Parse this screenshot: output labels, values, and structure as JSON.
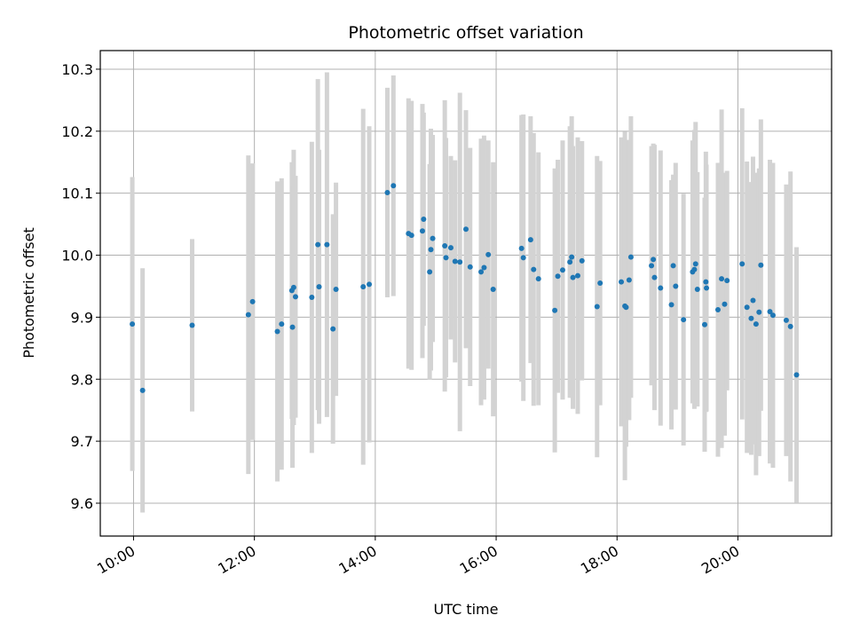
{
  "chart_data": {
    "type": "scatter",
    "title": "Photometric offset variation",
    "xlabel": "UTC time",
    "ylabel": "Photometric offset",
    "xlim": [
      9.45,
      21.55
    ],
    "ylim": [
      9.547,
      10.33
    ],
    "grid": true,
    "x_ticks": [
      {
        "value": 10,
        "label": "10:00"
      },
      {
        "value": 12,
        "label": "12:00"
      },
      {
        "value": 14,
        "label": "14:00"
      },
      {
        "value": 16,
        "label": "16:00"
      },
      {
        "value": 18,
        "label": "18:00"
      },
      {
        "value": 20,
        "label": "20:00"
      }
    ],
    "y_ticks": [
      {
        "value": 9.6,
        "label": "9.6"
      },
      {
        "value": 9.7,
        "label": "9.7"
      },
      {
        "value": 9.8,
        "label": "9.8"
      },
      {
        "value": 9.9,
        "label": "9.9"
      },
      {
        "value": 10.0,
        "label": "10.0"
      },
      {
        "value": 10.1,
        "label": "10.1"
      },
      {
        "value": 10.2,
        "label": "10.2"
      },
      {
        "value": 10.3,
        "label": "10.3"
      }
    ],
    "colors": {
      "point": "#1f77b4",
      "errorbar": "#d3d3d3",
      "grid": "#b0b0b0"
    },
    "series": [
      {
        "name": "offset",
        "x": [
          9.98,
          10.15,
          10.97,
          11.9,
          11.97,
          12.38,
          12.45,
          12.62,
          12.63,
          12.65,
          12.68,
          12.95,
          13.05,
          13.07,
          13.2,
          13.3,
          13.35,
          13.8,
          13.9,
          14.2,
          14.3,
          14.55,
          14.6,
          14.78,
          14.8,
          14.9,
          14.92,
          14.95,
          15.15,
          15.17,
          15.25,
          15.32,
          15.4,
          15.5,
          15.57,
          15.75,
          15.8,
          15.87,
          15.95,
          16.42,
          16.45,
          16.57,
          16.62,
          16.7,
          16.97,
          17.02,
          17.1,
          17.22,
          17.25,
          17.27,
          17.35,
          17.42,
          17.67,
          17.72,
          18.07,
          18.13,
          18.15,
          18.2,
          18.23,
          18.57,
          18.6,
          18.62,
          18.72,
          18.9,
          18.93,
          18.97,
          19.1,
          19.25,
          19.28,
          19.3,
          19.33,
          19.45,
          19.47,
          19.48,
          19.67,
          19.73,
          19.78,
          19.82,
          20.07,
          20.15,
          20.22,
          20.25,
          20.3,
          20.35,
          20.38,
          20.53,
          20.58,
          20.8,
          20.87,
          20.97
        ],
        "y": [
          9.889,
          9.782,
          9.887,
          9.904,
          9.925,
          9.877,
          9.889,
          9.943,
          9.884,
          9.948,
          9.933,
          9.932,
          10.017,
          9.949,
          10.017,
          9.881,
          9.945,
          9.949,
          9.953,
          10.101,
          10.112,
          10.035,
          10.032,
          10.039,
          10.058,
          9.973,
          10.009,
          10.027,
          10.015,
          9.996,
          10.012,
          9.99,
          9.989,
          10.042,
          9.981,
          9.973,
          9.98,
          10.001,
          9.945,
          10.011,
          9.996,
          10.025,
          9.977,
          9.962,
          9.911,
          9.966,
          9.976,
          9.989,
          9.997,
          9.964,
          9.967,
          9.991,
          9.917,
          9.955,
          9.957,
          9.918,
          9.916,
          9.96,
          9.997,
          9.983,
          9.993,
          9.964,
          9.947,
          9.92,
          9.983,
          9.95,
          9.896,
          9.973,
          9.977,
          9.986,
          9.945,
          9.888,
          9.957,
          9.947,
          9.912,
          9.962,
          9.921,
          9.959,
          9.986,
          9.916,
          9.898,
          9.927,
          9.889,
          9.908,
          9.984,
          9.909,
          9.903,
          9.895,
          9.885,
          9.807
        ],
        "error": [
          0.237,
          0.197,
          0.139,
          0.257,
          0.223,
          0.242,
          0.235,
          0.207,
          0.227,
          0.222,
          0.195,
          0.251,
          0.267,
          0.221,
          0.278,
          0.185,
          0.172,
          0.287,
          0.255,
          0.169,
          0.178,
          0.218,
          0.217,
          0.205,
          0.172,
          0.174,
          0.195,
          0.167,
          0.235,
          0.193,
          0.148,
          0.163,
          0.273,
          0.192,
          0.192,
          0.215,
          0.213,
          0.184,
          0.205,
          0.215,
          0.231,
          0.199,
          0.22,
          0.204,
          0.229,
          0.188,
          0.209,
          0.219,
          0.227,
          0.212,
          0.223,
          0.193,
          0.243,
          0.197,
          0.233,
          0.281,
          0.225,
          0.226,
          0.227,
          0.193,
          0.187,
          0.214,
          0.222,
          0.201,
          0.147,
          0.199,
          0.203,
          0.212,
          0.225,
          0.229,
          0.189,
          0.205,
          0.21,
          0.199,
          0.237,
          0.273,
          0.212,
          0.177,
          0.251,
          0.235,
          0.22,
          0.232,
          0.244,
          0.232,
          0.235,
          0.245,
          0.246,
          0.219,
          0.25,
          0.206
        ]
      }
    ]
  }
}
